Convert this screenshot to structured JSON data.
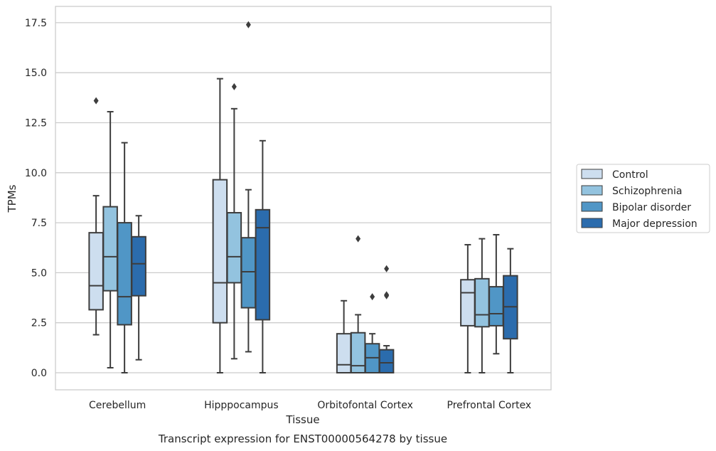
{
  "chart_data": {
    "type": "box",
    "xlabel": "Tissue",
    "ylabel": "TPMs",
    "caption": "Transcript expression for ENST00000564278 by tissue",
    "ylim": [
      -0.85,
      18.3
    ],
    "yticks": [
      0.0,
      2.5,
      5.0,
      7.5,
      10.0,
      12.5,
      15.0,
      17.5
    ],
    "ytick_labels": [
      "0.0",
      "2.5",
      "5.0",
      "7.5",
      "10.0",
      "12.5",
      "15.0",
      "17.5"
    ],
    "grid": "horizontal",
    "legend_placement": "center-right outside",
    "categories": [
      "Cerebellum",
      "Hipppocampus",
      "Orbitofontal Cortex",
      "Prefrontal Cortex"
    ],
    "series": [
      {
        "name": "Control",
        "color": "#cddeef",
        "boxes": [
          {
            "whisker_low": 1.9,
            "q1": 3.15,
            "median": 4.35,
            "q3": 7.0,
            "whisker_high": 8.85,
            "outliers": [
              13.6
            ]
          },
          {
            "whisker_low": 0.0,
            "q1": 2.5,
            "median": 4.5,
            "q3": 9.65,
            "whisker_high": 14.7,
            "outliers": []
          },
          {
            "whisker_low": 0.0,
            "q1": 0.0,
            "median": 0.4,
            "q3": 1.95,
            "whisker_high": 3.6,
            "outliers": []
          },
          {
            "whisker_low": 0.0,
            "q1": 2.35,
            "median": 4.0,
            "q3": 4.65,
            "whisker_high": 6.4,
            "outliers": []
          }
        ]
      },
      {
        "name": "Schizophrenia",
        "color": "#93c3df",
        "boxes": [
          {
            "whisker_low": 0.25,
            "q1": 4.1,
            "median": 5.8,
            "q3": 8.3,
            "whisker_high": 13.05,
            "outliers": []
          },
          {
            "whisker_low": 0.7,
            "q1": 4.5,
            "median": 5.8,
            "q3": 8.0,
            "whisker_high": 13.2,
            "outliers": [
              14.3
            ]
          },
          {
            "whisker_low": 0.0,
            "q1": 0.0,
            "median": 0.35,
            "q3": 2.0,
            "whisker_high": 2.9,
            "outliers": [
              6.7
            ]
          },
          {
            "whisker_low": 0.0,
            "q1": 2.3,
            "median": 2.9,
            "q3": 4.7,
            "whisker_high": 6.7,
            "outliers": []
          }
        ]
      },
      {
        "name": "Bipolar disorder",
        "color": "#5096c6",
        "boxes": [
          {
            "whisker_low": 0.0,
            "q1": 2.4,
            "median": 3.8,
            "q3": 7.5,
            "whisker_high": 11.5,
            "outliers": []
          },
          {
            "whisker_low": 1.05,
            "q1": 3.25,
            "median": 5.05,
            "q3": 6.75,
            "whisker_high": 9.15,
            "outliers": [
              17.4
            ]
          },
          {
            "whisker_low": 0.0,
            "q1": 0.0,
            "median": 0.75,
            "q3": 1.45,
            "whisker_high": 1.95,
            "outliers": [
              3.8
            ]
          },
          {
            "whisker_low": 0.95,
            "q1": 2.35,
            "median": 2.95,
            "q3": 4.3,
            "whisker_high": 6.9,
            "outliers": []
          }
        ]
      },
      {
        "name": "Major depression",
        "color": "#2b6cad",
        "boxes": [
          {
            "whisker_low": 0.65,
            "q1": 3.85,
            "median": 5.45,
            "q3": 6.8,
            "whisker_high": 7.85,
            "outliers": []
          },
          {
            "whisker_low": 0.0,
            "q1": 2.65,
            "median": 7.25,
            "q3": 8.15,
            "whisker_high": 11.6,
            "outliers": []
          },
          {
            "whisker_low": 0.0,
            "q1": 0.0,
            "median": 0.5,
            "q3": 1.15,
            "whisker_high": 1.35,
            "outliers": [
              3.85,
              3.9,
              5.2
            ]
          },
          {
            "whisker_low": 0.0,
            "q1": 1.7,
            "median": 3.3,
            "q3": 4.85,
            "whisker_high": 6.2,
            "outliers": []
          }
        ]
      }
    ]
  }
}
